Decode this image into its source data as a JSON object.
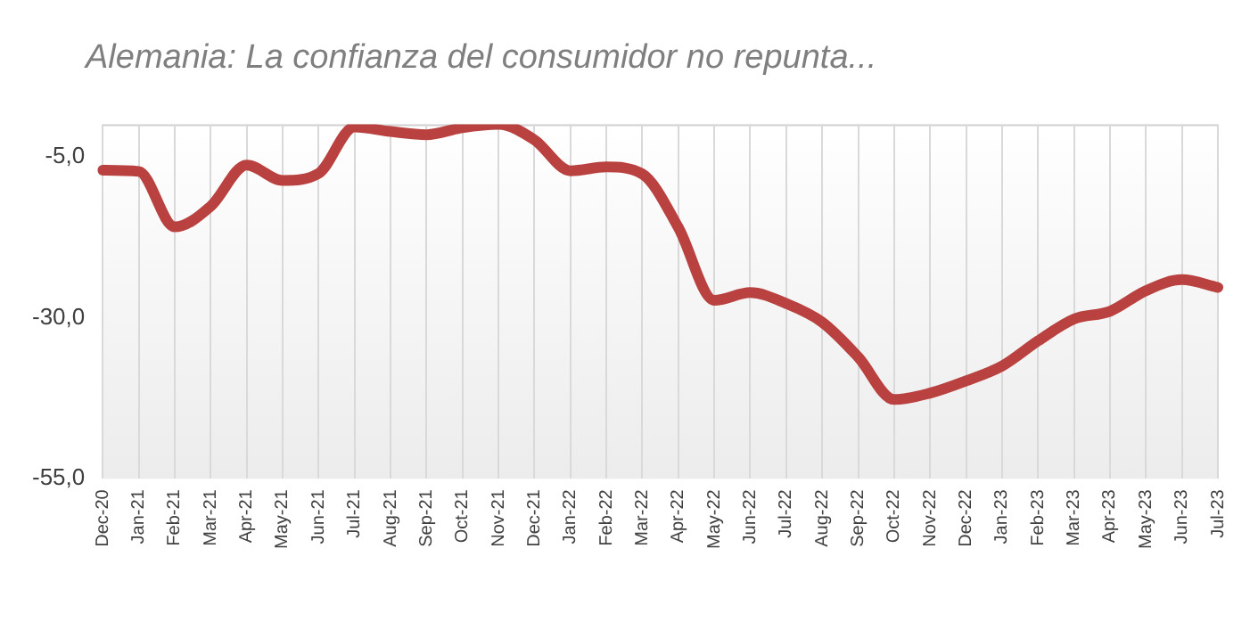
{
  "chart_data": {
    "type": "line",
    "title": "Alemania: La confianza del consumidor no repunta...",
    "categories": [
      "Dec-20",
      "Jan-21",
      "Feb-21",
      "Mar-21",
      "Apr-21",
      "May-21",
      "Jun-21",
      "Jul-21",
      "Aug-21",
      "Sep-21",
      "Oct-21",
      "Nov-21",
      "Dec-21",
      "Jan-22",
      "Feb-22",
      "Mar-22",
      "Apr-22",
      "May-22",
      "Jun-22",
      "Jul-22",
      "Aug-22",
      "Sep-22",
      "Oct-22",
      "Nov-22",
      "Dec-22",
      "Jan-23",
      "Feb-23",
      "Mar-23",
      "Apr-23",
      "May-23",
      "Jun-23",
      "Jul-23"
    ],
    "series": [
      {
        "color": "#b94240",
        "values": [
          -7.1,
          -7.3,
          -15.9,
          -12.7,
          -6.3,
          -8.7,
          -7.6,
          -0.4,
          -1.1,
          -1.6,
          -0.5,
          0,
          -2.4,
          -7.2,
          -6.6,
          -7.7,
          -16,
          -27.3,
          -26.1,
          -27.8,
          -30.7,
          -36.1,
          -42.7,
          -41.7,
          -39.8,
          -37.5,
          -33.6,
          -30.2,
          -29,
          -25.8,
          -24.1,
          -25.3
        ]
      }
    ],
    "ylim": [
      -55,
      0
    ],
    "yticks": [
      {
        "value": -55,
        "label": "-55,0"
      },
      {
        "value": -30,
        "label": "-30,0"
      },
      {
        "value": -5,
        "label": "-5,0"
      }
    ],
    "grid": "x",
    "legend": false,
    "marker": "none",
    "line_style": "solid"
  }
}
